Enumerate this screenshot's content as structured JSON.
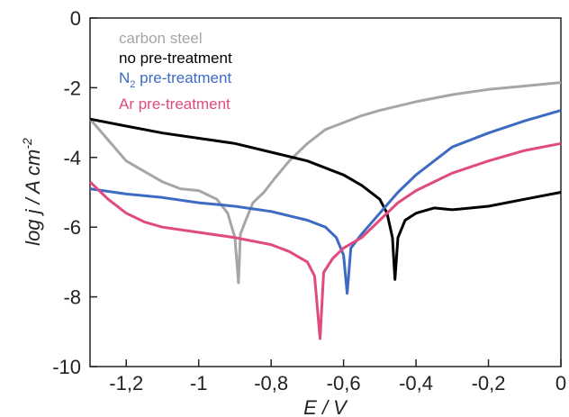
{
  "chart_data": {
    "type": "line",
    "xlabel": "E / V",
    "ylabel": "log j / A cm",
    "ylabel_superscript": "-2",
    "xlim": [
      -1.3,
      0
    ],
    "ylim": [
      -10,
      0
    ],
    "x_ticks": [
      -1.2,
      -1.0,
      -0.8,
      -0.6,
      -0.4,
      -0.2,
      0
    ],
    "x_tick_labels": [
      "-1,2",
      "-1",
      "-0,8",
      "-0,6",
      "-0,4",
      "-0,2",
      "0"
    ],
    "y_ticks": [
      0,
      -2,
      -4,
      -6,
      -8,
      -10
    ],
    "y_tick_labels": [
      "0",
      "-2",
      "-4",
      "-6",
      "-8",
      "-10"
    ],
    "grid": false,
    "legend_position": "top-left",
    "series": [
      {
        "name": "carbon steel",
        "color": "#a6a6a6",
        "points": [
          [
            -1.3,
            -2.9
          ],
          [
            -1.25,
            -3.5
          ],
          [
            -1.2,
            -4.1
          ],
          [
            -1.15,
            -4.4
          ],
          [
            -1.1,
            -4.7
          ],
          [
            -1.05,
            -4.9
          ],
          [
            -1.0,
            -4.95
          ],
          [
            -0.95,
            -5.2
          ],
          [
            -0.92,
            -5.6
          ],
          [
            -0.9,
            -6.3
          ],
          [
            -0.89,
            -7.6
          ],
          [
            -0.885,
            -6.2
          ],
          [
            -0.87,
            -5.8
          ],
          [
            -0.85,
            -5.3
          ],
          [
            -0.82,
            -5.0
          ],
          [
            -0.79,
            -4.6
          ],
          [
            -0.75,
            -4.1
          ],
          [
            -0.7,
            -3.6
          ],
          [
            -0.65,
            -3.2
          ],
          [
            -0.6,
            -3.0
          ],
          [
            -0.55,
            -2.8
          ],
          [
            -0.5,
            -2.65
          ],
          [
            -0.4,
            -2.4
          ],
          [
            -0.3,
            -2.2
          ],
          [
            -0.2,
            -2.05
          ],
          [
            -0.1,
            -1.95
          ],
          [
            0,
            -1.85
          ]
        ]
      },
      {
        "name": "no pre-treatment",
        "color": "#000000",
        "points": [
          [
            -1.3,
            -2.9
          ],
          [
            -1.2,
            -3.1
          ],
          [
            -1.1,
            -3.3
          ],
          [
            -1.0,
            -3.45
          ],
          [
            -0.9,
            -3.6
          ],
          [
            -0.8,
            -3.85
          ],
          [
            -0.7,
            -4.1
          ],
          [
            -0.6,
            -4.5
          ],
          [
            -0.55,
            -4.8
          ],
          [
            -0.5,
            -5.2
          ],
          [
            -0.48,
            -5.6
          ],
          [
            -0.465,
            -6.3
          ],
          [
            -0.458,
            -7.5
          ],
          [
            -0.45,
            -6.3
          ],
          [
            -0.43,
            -5.8
          ],
          [
            -0.4,
            -5.6
          ],
          [
            -0.35,
            -5.45
          ],
          [
            -0.3,
            -5.5
          ],
          [
            -0.2,
            -5.4
          ],
          [
            -0.1,
            -5.2
          ],
          [
            0,
            -5.0
          ]
        ]
      },
      {
        "name": "N2 pre-treatment",
        "name_main": "N",
        "name_sub": "2",
        "name_rest": " pre-treatment",
        "color": "#3d6bc4",
        "points": [
          [
            -1.3,
            -4.9
          ],
          [
            -1.2,
            -5.05
          ],
          [
            -1.1,
            -5.15
          ],
          [
            -1.0,
            -5.3
          ],
          [
            -0.9,
            -5.4
          ],
          [
            -0.8,
            -5.55
          ],
          [
            -0.7,
            -5.8
          ],
          [
            -0.65,
            -6.0
          ],
          [
            -0.62,
            -6.3
          ],
          [
            -0.6,
            -6.8
          ],
          [
            -0.59,
            -7.9
          ],
          [
            -0.58,
            -6.6
          ],
          [
            -0.55,
            -6.2
          ],
          [
            -0.5,
            -5.6
          ],
          [
            -0.45,
            -5.0
          ],
          [
            -0.4,
            -4.5
          ],
          [
            -0.35,
            -4.1
          ],
          [
            -0.3,
            -3.7
          ],
          [
            -0.2,
            -3.3
          ],
          [
            -0.1,
            -2.95
          ],
          [
            0,
            -2.65
          ]
        ]
      },
      {
        "name": "Ar pre-treatment",
        "color": "#e04a7e",
        "points": [
          [
            -1.3,
            -4.7
          ],
          [
            -1.25,
            -5.2
          ],
          [
            -1.2,
            -5.6
          ],
          [
            -1.15,
            -5.85
          ],
          [
            -1.1,
            -6.0
          ],
          [
            -1.0,
            -6.15
          ],
          [
            -0.9,
            -6.3
          ],
          [
            -0.8,
            -6.5
          ],
          [
            -0.75,
            -6.7
          ],
          [
            -0.7,
            -7.0
          ],
          [
            -0.68,
            -7.4
          ],
          [
            -0.665,
            -9.2
          ],
          [
            -0.655,
            -7.3
          ],
          [
            -0.63,
            -6.9
          ],
          [
            -0.6,
            -6.6
          ],
          [
            -0.55,
            -6.3
          ],
          [
            -0.5,
            -5.8
          ],
          [
            -0.45,
            -5.3
          ],
          [
            -0.4,
            -4.95
          ],
          [
            -0.35,
            -4.7
          ],
          [
            -0.3,
            -4.45
          ],
          [
            -0.2,
            -4.1
          ],
          [
            -0.1,
            -3.8
          ],
          [
            0,
            -3.6
          ]
        ]
      }
    ]
  }
}
